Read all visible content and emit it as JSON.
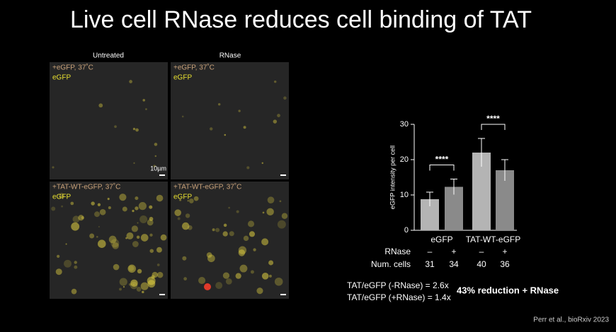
{
  "title": "Live cell RNase reduces cell binding of TAT",
  "images": {
    "columns": [
      "Untreated",
      "RNase"
    ],
    "panels": [
      {
        "condition": "+eGFP, 37˚C",
        "channel": "eGFP",
        "scale": "10µm"
      },
      {
        "condition": "+eGFP, 37˚C",
        "channel": "eGFP"
      },
      {
        "condition": "+TAT-WT-eGFP, 37˚C",
        "channel": "eGFP"
      },
      {
        "condition": "+TAT-WT-eGFP, 37˚C",
        "channel": "eGFP"
      }
    ]
  },
  "chart_data": {
    "type": "bar",
    "y_label": "eGFP intensity per cell",
    "groups": [
      "eGFP",
      "TAT-WT-eGFP"
    ],
    "values": [
      8.8,
      12.3,
      22,
      17
    ],
    "errors": [
      2,
      2.2,
      4,
      3
    ],
    "colors": [
      "#b4b4b4",
      "#8a8a8a",
      "#b4b4b4",
      "#8a8a8a"
    ],
    "ylim": [
      0,
      30
    ],
    "yticks": [
      0,
      10,
      20,
      30
    ],
    "rnase_label": "RNase",
    "rnase": [
      "–",
      "+",
      "–",
      "+"
    ],
    "cells_label": "Num. cells",
    "num_cells": [
      31,
      34,
      40,
      36
    ],
    "significance": [
      {
        "pair": [
          0,
          1
        ],
        "label": "****"
      },
      {
        "pair": [
          2,
          3
        ],
        "label": "****"
      }
    ]
  },
  "notes": [
    "TAT/eGFP (-RNase) = 2.6x",
    "TAT/eGFP (+RNase) = 1.4x"
  ],
  "highlight": "43% reduction + RNase",
  "citation": "Perr et al., bioRxiv 2023"
}
